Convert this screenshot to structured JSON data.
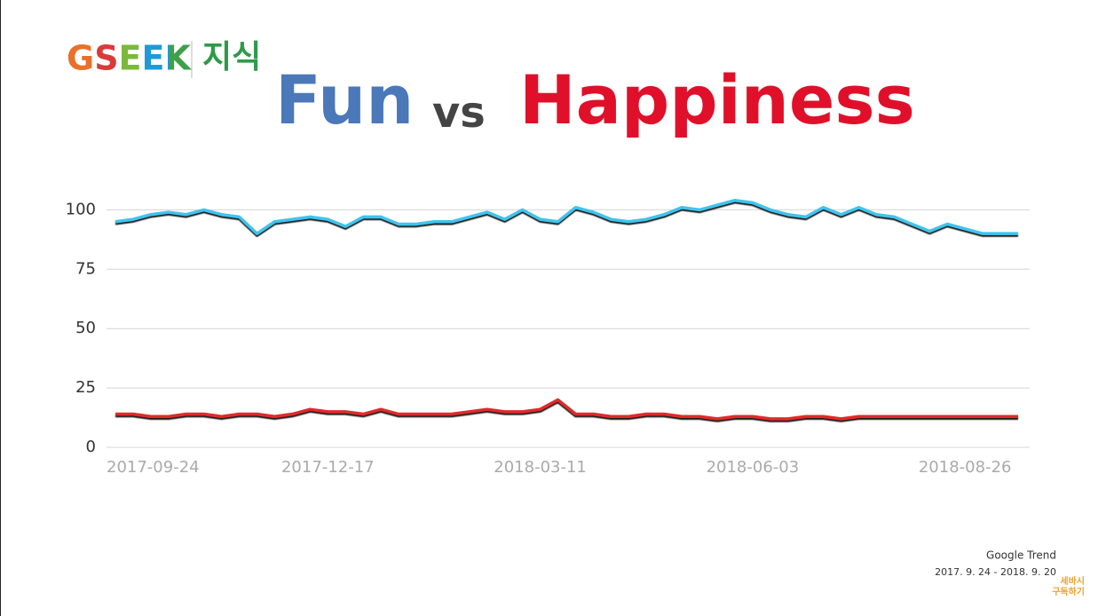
{
  "header": {
    "logo": "GSEEK",
    "logo_sub": "지식",
    "vs": "vs"
  },
  "chart_data": {
    "type": "line",
    "categories": [
      "2017-09-24",
      null,
      null,
      null,
      null,
      null,
      null,
      null,
      null,
      null,
      null,
      null,
      "2017-12-17",
      null,
      null,
      null,
      null,
      null,
      null,
      null,
      null,
      null,
      null,
      null,
      "2018-03-11",
      null,
      null,
      null,
      null,
      null,
      null,
      null,
      null,
      null,
      null,
      null,
      "2018-06-03",
      null,
      null,
      null,
      null,
      null,
      null,
      null,
      null,
      null,
      null,
      null,
      "2018-08-26",
      null,
      null,
      null
    ],
    "series": [
      {
        "name": "Fun",
        "color": "#3fc3ee",
        "values": [
          95,
          96,
          98,
          99,
          98,
          100,
          98,
          97,
          90,
          95,
          96,
          97,
          96,
          93,
          97,
          97,
          94,
          94,
          95,
          95,
          97,
          99,
          96,
          100,
          96,
          95,
          101,
          99,
          96,
          95,
          96,
          98,
          101,
          100,
          102,
          104,
          103,
          100,
          98,
          97,
          101,
          98,
          101,
          98,
          97,
          94,
          91,
          94,
          92,
          90,
          90,
          90
        ]
      },
      {
        "name": "Happiness",
        "color": "#e02a2a",
        "values": [
          14,
          14,
          13,
          13,
          14,
          14,
          13,
          14,
          14,
          13,
          14,
          16,
          15,
          15,
          14,
          16,
          14,
          14,
          14,
          14,
          15,
          16,
          15,
          15,
          16,
          20,
          14,
          14,
          13,
          13,
          14,
          14,
          13,
          13,
          12,
          13,
          13,
          12,
          12,
          13,
          13,
          12,
          13,
          13,
          13,
          13,
          13,
          13,
          13,
          13,
          13,
          13
        ]
      }
    ],
    "ylim": [
      0,
      105
    ],
    "yticks": [
      0,
      25,
      50,
      75,
      100
    ],
    "grid": true
  },
  "footer": {
    "source": "Google Trend",
    "period": "2017. 9. 24 - 2018. 9. 20",
    "badge_1": "세바시",
    "badge_2": "구독하기"
  }
}
